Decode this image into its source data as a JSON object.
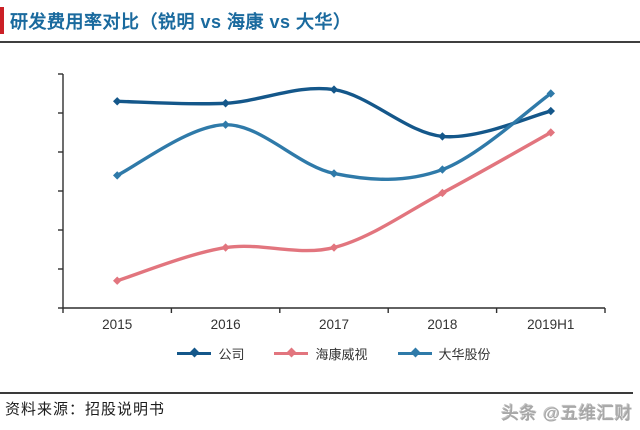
{
  "header": {
    "title": "研发费用率对比（锐明 vs 海康 vs 大华）",
    "title_color": "#1a6a9e",
    "accent_color": "#cb2026"
  },
  "chart_data": {
    "type": "line",
    "title": "研发费用率对比（锐明 vs 海康 vs 大华）",
    "categories": [
      "2015",
      "2016",
      "2017",
      "2018",
      "2019H1"
    ],
    "series": [
      {
        "name": "公司",
        "color": "#14578a",
        "values": [
          10.6,
          10.5,
          11.2,
          8.8,
          10.1
        ]
      },
      {
        "name": "海康威视",
        "color": "#e2757e",
        "values": [
          1.4,
          3.1,
          3.1,
          5.9,
          9.0
        ]
      },
      {
        "name": "大华股份",
        "color": "#2f7aa9",
        "values": [
          6.8,
          9.4,
          6.9,
          7.1,
          11.0
        ]
      }
    ],
    "xlabel": "",
    "ylabel": "",
    "ylim": [
      0,
      12
    ],
    "y_tick_count": 7,
    "y_axis_labels_visible": false,
    "grid": false,
    "line_style": "smooth",
    "marker": "diamond",
    "legend_position": "bottom",
    "axis_color": "#2f2f2f",
    "tick_label_color": "#333333"
  },
  "footer": {
    "source": "资料来源：招股说明书",
    "watermark": "头条 @五维汇财"
  }
}
